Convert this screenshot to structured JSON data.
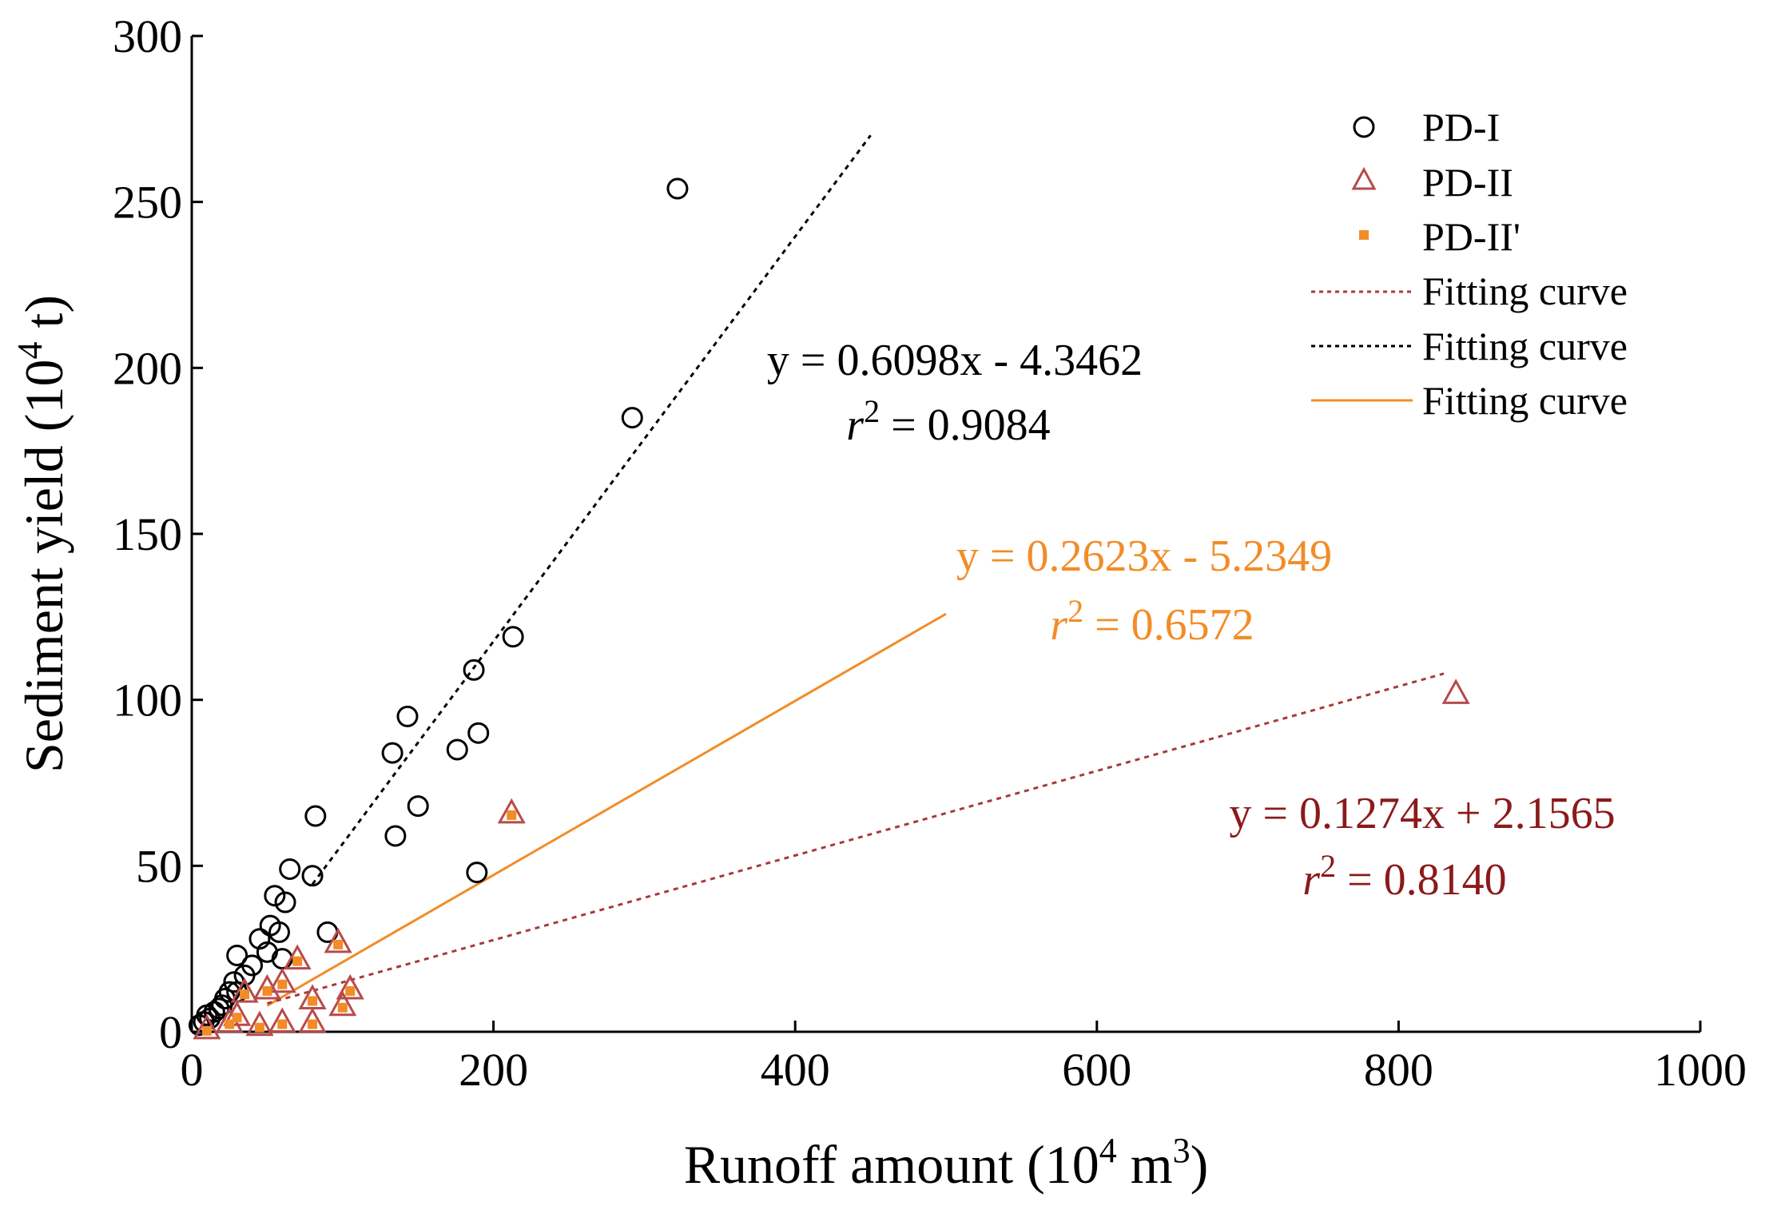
{
  "chart_data": {
    "type": "scatter",
    "xlabel": "Runoff amount (10",
    "xlabel_sup": "4",
    "xlabel_mid": " m",
    "xlabel_sup2": "3",
    "xlabel_end": ")",
    "ylabel": "Sediment yield (10",
    "ylabel_sup": "4",
    "ylabel_end": " t)",
    "xlim": [
      0,
      1000
    ],
    "ylim": [
      0,
      300
    ],
    "xticks": [
      0,
      200,
      400,
      600,
      800,
      1000
    ],
    "yticks": [
      0,
      50,
      100,
      150,
      200,
      250,
      300
    ],
    "grid": false,
    "legend_position": "top-right",
    "legend": [
      {
        "label": "PD-I",
        "kind": "circle",
        "color": "#000000"
      },
      {
        "label": "PD-II",
        "kind": "triangle",
        "color": "#b84a4a"
      },
      {
        "label": "PD-II'",
        "kind": "square",
        "color": "#f28c28"
      },
      {
        "label": "Fitting curve",
        "kind": "dotted",
        "color": "#a83a3a"
      },
      {
        "label": "Fitting curve",
        "kind": "dotted",
        "color": "#000000"
      },
      {
        "label": "Fitting curve",
        "kind": "solid",
        "color": "#f28c28"
      }
    ],
    "series": [
      {
        "name": "PD-I",
        "marker": "circle",
        "color": "#000000",
        "x": [
          322,
          292,
          213,
          187,
          143,
          133,
          150,
          135,
          176,
          190,
          189,
          82,
          65,
          80,
          55,
          62,
          90,
          58,
          52,
          45,
          30,
          40,
          35,
          28,
          60,
          25,
          20,
          15,
          10,
          5,
          8,
          12,
          18,
          22,
          30,
          50
        ],
        "y": [
          254,
          185,
          119,
          109,
          95,
          84,
          68,
          59,
          85,
          90,
          48,
          65,
          49,
          47,
          41,
          39,
          30,
          30,
          32,
          28,
          23,
          20,
          17,
          15,
          22,
          12,
          8,
          6,
          5,
          2,
          3,
          4,
          7,
          10,
          12,
          24
        ]
      },
      {
        "name": "PD-II",
        "marker": "triangle",
        "color": "#b84a4a",
        "x": [
          838,
          212,
          97,
          70,
          105,
          80,
          100,
          60,
          50,
          35,
          30,
          60,
          80,
          45,
          25,
          10
        ],
        "y": [
          102,
          66,
          27,
          22,
          13,
          10,
          8,
          15,
          13,
          12,
          5,
          3,
          3,
          2,
          3,
          1
        ]
      },
      {
        "name": "PD-II'",
        "marker": "square",
        "color": "#f28c28",
        "x": [
          212,
          97,
          70,
          105,
          80,
          100,
          60,
          50,
          35,
          30,
          60,
          80,
          45,
          25,
          10
        ],
        "y": [
          66,
          27,
          22,
          13,
          10,
          8,
          15,
          13,
          12,
          5,
          3,
          3,
          2,
          3,
          1
        ]
      }
    ],
    "fits": [
      {
        "name": "PD-I fit",
        "slope": 0.6098,
        "intercept": -4.3462,
        "x_range": [
          80,
          450
        ],
        "color": "#000000",
        "style": "dotted"
      },
      {
        "name": "PD-II' fit",
        "slope": 0.2623,
        "intercept": -5.2349,
        "x_range": [
          50,
          500
        ],
        "color": "#f28c28",
        "style": "solid"
      },
      {
        "name": "PD-II fit",
        "slope": 0.1274,
        "intercept": 2.1565,
        "x_range": [
          50,
          830
        ],
        "color": "#a83a3a",
        "style": "dotted"
      }
    ],
    "annotations": [
      {
        "eq": "y = 0.6098x - 4.3462",
        "r2_prefix": "r",
        "r2_sup": "2",
        "r2_value": " = 0.9084",
        "color": "#000000"
      },
      {
        "eq": "y = 0.2623x - 5.2349",
        "r2_prefix": "r",
        "r2_sup": "2",
        "r2_value": " = 0.6572",
        "color": "#f28c28"
      },
      {
        "eq": "y = 0.1274x + 2.1565",
        "r2_prefix": "r",
        "r2_sup": "2",
        "r2_value": " = 0.8140",
        "color": "#8b1a1a"
      }
    ]
  }
}
